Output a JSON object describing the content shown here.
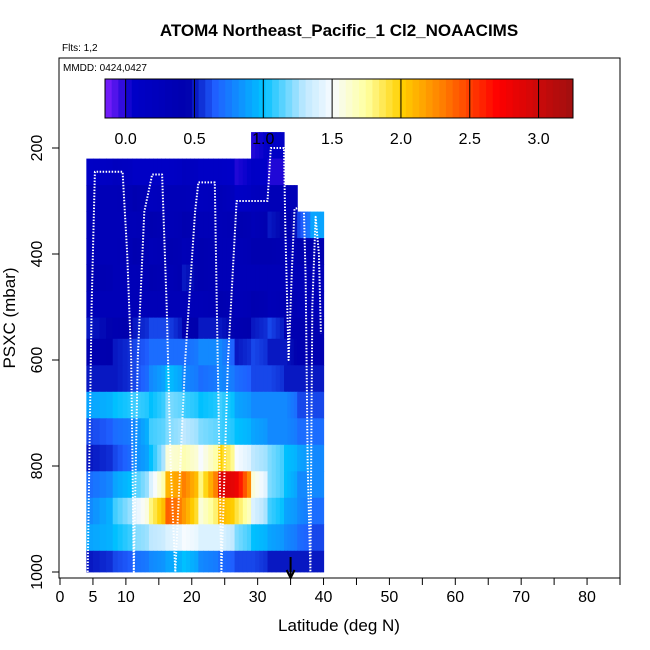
{
  "chart_data": {
    "type": "heatmap",
    "title": "ATOM4 Northeast_Pacific_1 Cl2_NOAACIMS",
    "flights_label": "Flts: 1,2",
    "dates_label": "MMDD: 0424,0427",
    "xlabel": "Latitude (deg N)",
    "ylabel": "PSXC (mbar)",
    "xlim": [
      0,
      85
    ],
    "ylim": [
      1000,
      0
    ],
    "x_ticks": [
      0,
      5,
      10,
      20,
      30,
      40,
      50,
      60,
      70,
      80
    ],
    "x_minor_ticks": [
      15,
      25,
      35,
      45,
      55,
      65,
      75,
      85
    ],
    "y_ticks": [
      200,
      400,
      600,
      800,
      1000
    ],
    "colorbar": {
      "range": [
        -0.15,
        3.25
      ],
      "ticks": [
        0.0,
        0.5,
        1.0,
        1.5,
        2.0,
        2.5,
        3.0
      ],
      "tick_labels": [
        "0.0",
        "0.5",
        "1.0",
        "1.5",
        "2.0",
        "2.5",
        "3.0"
      ],
      "stops": [
        {
          "v": -0.15,
          "c": "#7f1fff"
        },
        {
          "v": 0.05,
          "c": "#0000c8"
        },
        {
          "v": 0.45,
          "c": "#0000ad"
        },
        {
          "v": 0.65,
          "c": "#1f5fff"
        },
        {
          "v": 1.0,
          "c": "#00c0ff"
        },
        {
          "v": 1.3,
          "c": "#bfe8ff"
        },
        {
          "v": 1.5,
          "c": "#f7fbff"
        },
        {
          "v": 1.75,
          "c": "#ffffa0"
        },
        {
          "v": 2.0,
          "c": "#ffd000"
        },
        {
          "v": 2.3,
          "c": "#ff7f00"
        },
        {
          "v": 2.7,
          "c": "#ff0000"
        },
        {
          "v": 3.25,
          "c": "#a01010"
        }
      ]
    },
    "lat_bins": [
      4,
      8,
      11,
      13.5,
      16,
      18.5,
      21,
      24,
      26.5,
      29,
      31.5,
      34,
      36,
      38,
      40
    ],
    "pressure_bins": [
      170,
      220,
      270,
      320,
      370,
      420,
      470,
      520,
      560,
      610,
      660,
      710,
      760,
      810,
      860,
      910,
      960,
      1000
    ],
    "cells": [
      [
        null,
        null,
        null,
        null,
        null,
        null,
        null,
        null,
        null,
        0.0,
        0.1,
        null,
        null,
        null
      ],
      [
        0.1,
        0.2,
        0.1,
        0.1,
        0.1,
        0.2,
        0.1,
        0.1,
        0.0,
        0.1,
        0.0,
        null,
        null,
        null
      ],
      [
        0.3,
        0.3,
        0.4,
        0.2,
        0.3,
        0.3,
        0.2,
        0.3,
        0.1,
        0.2,
        0.3,
        0.3,
        null,
        null
      ],
      [
        0.3,
        0.3,
        0.3,
        0.4,
        0.3,
        0.4,
        0.3,
        0.3,
        0.4,
        0.3,
        0.5,
        0.4,
        0.6,
        0.9
      ],
      [
        0.3,
        0.3,
        0.4,
        0.3,
        0.4,
        0.3,
        0.4,
        0.3,
        0.3,
        0.4,
        0.4,
        0.3,
        0.4,
        0.4
      ],
      [
        0.4,
        0.3,
        0.3,
        0.4,
        0.3,
        0.5,
        0.4,
        0.3,
        0.3,
        0.3,
        0.3,
        0.3,
        0.3,
        0.3
      ],
      [
        0.3,
        0.3,
        0.3,
        0.3,
        0.3,
        0.3,
        0.3,
        0.4,
        0.3,
        0.4,
        0.3,
        0.4,
        0.3,
        0.3
      ],
      [
        0.5,
        0.4,
        0.5,
        0.6,
        0.6,
        0.4,
        0.5,
        0.5,
        0.4,
        0.5,
        0.6,
        0.4,
        0.4,
        0.4
      ],
      [
        0.4,
        0.5,
        0.6,
        0.7,
        0.7,
        0.7,
        0.8,
        0.8,
        0.5,
        0.6,
        0.5,
        0.5,
        0.4,
        0.4
      ],
      [
        0.5,
        0.5,
        0.6,
        0.8,
        1.0,
        0.8,
        0.7,
        0.8,
        0.7,
        0.6,
        0.6,
        0.5,
        0.5,
        0.5
      ],
      [
        0.9,
        1.0,
        1.1,
        1.0,
        1.2,
        1.1,
        1.0,
        1.1,
        0.9,
        0.8,
        0.8,
        0.8,
        0.6,
        0.6
      ],
      [
        0.6,
        0.7,
        0.8,
        1.1,
        1.2,
        1.3,
        1.2,
        1.1,
        1.0,
        0.9,
        0.8,
        0.8,
        0.7,
        0.7
      ],
      [
        0.5,
        0.6,
        0.8,
        1.0,
        1.6,
        1.7,
        1.5,
        2.0,
        1.5,
        1.3,
        1.2,
        1.0,
        0.9,
        0.8
      ],
      [
        0.7,
        0.9,
        1.1,
        1.4,
        2.1,
        2.3,
        1.8,
        2.9,
        2.8,
        1.6,
        1.2,
        1.0,
        0.8,
        0.8
      ],
      [
        0.8,
        1.1,
        1.4,
        1.8,
        2.4,
        2.2,
        1.6,
        2.1,
        1.9,
        1.4,
        1.1,
        0.9,
        0.8,
        0.7
      ],
      [
        0.9,
        1.0,
        1.2,
        1.3,
        1.4,
        1.5,
        1.4,
        1.4,
        1.2,
        1.0,
        0.9,
        0.8,
        0.7,
        0.6
      ],
      [
        0.5,
        0.6,
        0.7,
        0.8,
        0.9,
        1.0,
        0.8,
        0.7,
        0.6,
        0.6,
        0.5,
        0.5,
        0.5,
        0.5
      ]
    ],
    "flight_track": [
      [
        4.2,
        1000
      ],
      [
        4.8,
        500
      ],
      [
        5.3,
        245
      ],
      [
        9.5,
        245
      ],
      [
        10.2,
        400
      ],
      [
        10.8,
        600
      ],
      [
        11.2,
        1000
      ],
      [
        11.8,
        600
      ],
      [
        12.8,
        320
      ],
      [
        14,
        250
      ],
      [
        15.5,
        250
      ],
      [
        16.2,
        500
      ],
      [
        16.8,
        800
      ],
      [
        17.5,
        1000
      ],
      [
        19,
        600
      ],
      [
        20.5,
        320
      ],
      [
        21,
        265
      ],
      [
        23.5,
        265
      ],
      [
        23.8,
        500
      ],
      [
        24.5,
        1000
      ],
      [
        25.5,
        600
      ],
      [
        26.8,
        300
      ],
      [
        30,
        300
      ],
      [
        31.5,
        300
      ],
      [
        32,
        200
      ],
      [
        34,
        200
      ],
      [
        34.2,
        350
      ],
      [
        34.7,
        600
      ],
      [
        35.2,
        430
      ],
      [
        35.6,
        315
      ],
      [
        37,
        310
      ],
      [
        37.3,
        450
      ],
      [
        37.6,
        800
      ],
      [
        38,
        1000
      ],
      [
        38.3,
        500
      ],
      [
        38.8,
        330
      ],
      [
        39.3,
        400
      ],
      [
        39.6,
        550
      ]
    ],
    "marker_lat": 35
  }
}
